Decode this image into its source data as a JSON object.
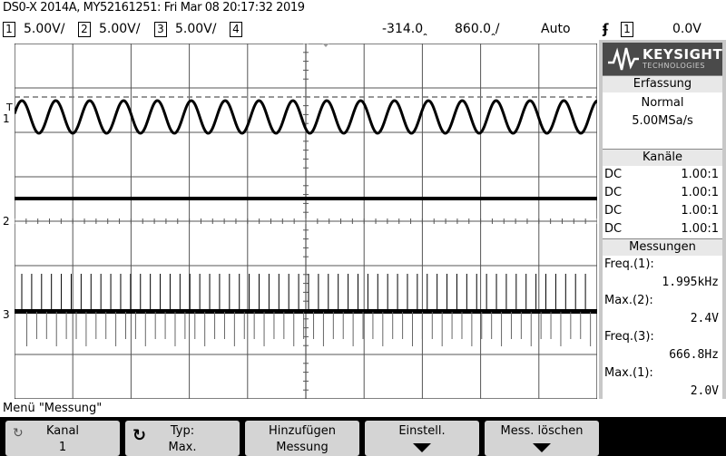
{
  "title_line": "DS0-X 2014A, MY52161251: Fri Mar 08 20:17:32 2019",
  "channel_bar": {
    "channels": [
      {
        "num": "1",
        "scale": "5.00V/"
      },
      {
        "num": "2",
        "scale": "5.00V/"
      },
      {
        "num": "3",
        "scale": "5.00V/"
      },
      {
        "num": "4",
        "scale": ""
      }
    ],
    "time_offset": "-314.0ꞈ",
    "time_scale": "860.0ꞈ/",
    "trigger_mode": "Auto",
    "trigger_icon": "rising-edge-icon",
    "trigger_source": "1",
    "trigger_level": "0.0V"
  },
  "markers": {
    "ch1": "1",
    "ch2": "2",
    "ch3": "3",
    "trigger": "T"
  },
  "panel": {
    "logo_brand": "KEYSIGHT",
    "logo_sub": "TECHNOLOGIES",
    "erfassung": {
      "header": "Erfassung",
      "mode": "Normal",
      "rate": "5.00MSa/s"
    },
    "kanaele": {
      "header": "Kanäle",
      "rows": [
        {
          "coupling": "DC",
          "ratio": "1.00:1"
        },
        {
          "coupling": "DC",
          "ratio": "1.00:1"
        },
        {
          "coupling": "DC",
          "ratio": "1.00:1"
        },
        {
          "coupling": "DC",
          "ratio": "1.00:1"
        }
      ]
    },
    "messungen": {
      "header": "Messungen",
      "items": [
        {
          "label": "Freq.(1):",
          "value": "1.995kHz"
        },
        {
          "label": "Max.(2):",
          "value": "2.4V"
        },
        {
          "label": "Freq.(3):",
          "value": "666.8Hz"
        },
        {
          "label": "Max.(1):",
          "value": "2.0V"
        }
      ]
    }
  },
  "menu": {
    "title": "Menü \"Messung\"",
    "softkeys": [
      {
        "line1": "Kanal",
        "line2": "1"
      },
      {
        "line1": "Typ:",
        "line2": "Max."
      },
      {
        "line1": "Hinzufügen",
        "line2": "Messung"
      },
      {
        "line1": "Einstell.",
        "line2": ""
      },
      {
        "line1": "Mess. löschen",
        "line2": ""
      }
    ]
  }
}
